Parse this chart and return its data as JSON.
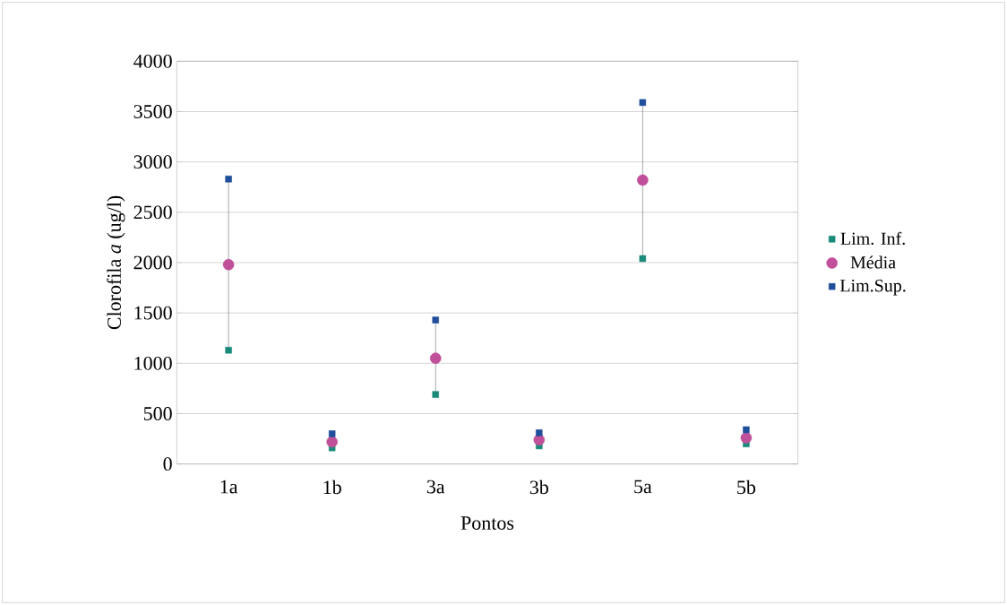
{
  "chart_data": {
    "type": "scatter",
    "xlabel": "Pontos",
    "ylabel": "Clorofila *a* (ug/l)",
    "categories": [
      "1a",
      "1b",
      "3a",
      "3b",
      "5a",
      "5b"
    ],
    "series": [
      {
        "name": "Lim. Inf.",
        "color": "#1a8a7a",
        "marker": "square",
        "values": [
          1130,
          160,
          690,
          180,
          2040,
          200
        ]
      },
      {
        "name": "Média",
        "color": "#c0509a",
        "marker": "circle",
        "values": [
          1980,
          220,
          1050,
          240,
          2820,
          260
        ]
      },
      {
        "name": "Lim.Sup.",
        "color": "#1f4e9a",
        "marker": "square",
        "values": [
          2830,
          300,
          1430,
          310,
          3590,
          340
        ]
      }
    ],
    "ylim": [
      0,
      4000
    ],
    "yticks": [
      0,
      500,
      1000,
      1500,
      2000,
      2500,
      3000,
      3500,
      4000
    ],
    "grid": "y",
    "legend": "right"
  }
}
